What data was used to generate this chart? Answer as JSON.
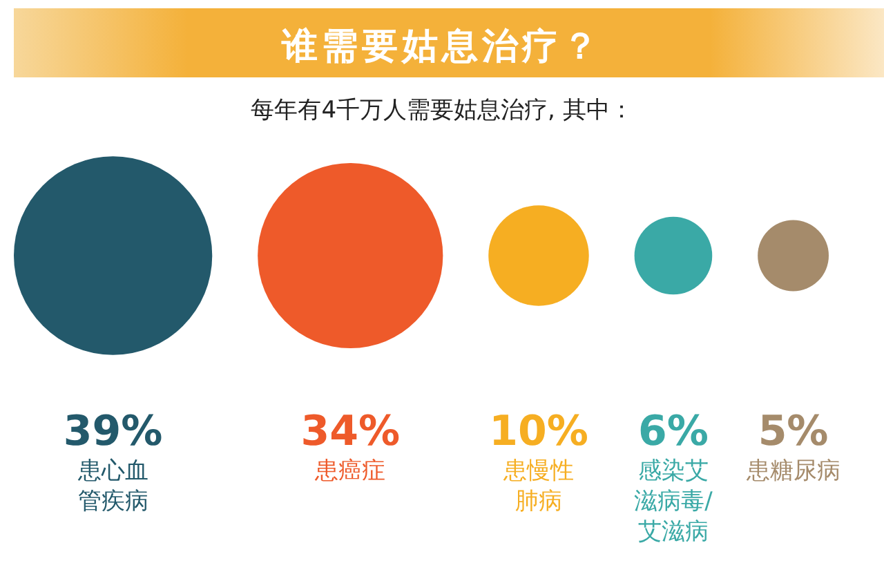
{
  "chart_data": {
    "type": "other",
    "title": "谁需要姑息治疗？",
    "subtitle": "每年有4千万人需要姑息治疗, 其中：",
    "categories": [
      "患心血管疾病",
      "患癌症",
      "患慢性肺病",
      "感染艾滋病毒/艾滋病",
      "患糖尿病"
    ],
    "values": [
      39,
      34,
      10,
      6,
      5
    ],
    "colors": [
      "#23596b",
      "#ee5a2a",
      "#f6ae22",
      "#3aa9a6",
      "#a58b6b"
    ],
    "value_labels": [
      "39%",
      "34%",
      "10%",
      "6%",
      "5%"
    ]
  }
}
